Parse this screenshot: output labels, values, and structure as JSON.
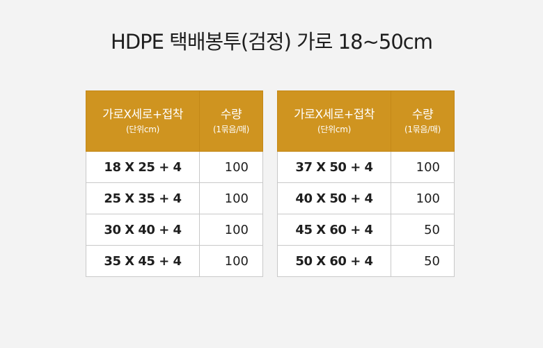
{
  "title": "HDPE 택배봉투(검정) 가로 18~50cm",
  "header": {
    "size_main": "가로X세로+접착",
    "size_sub": "(단위cm)",
    "qty_main": "수량",
    "qty_sub": "(1묶음/매)"
  },
  "left_table": {
    "rows": [
      {
        "size": "18 X 25 + 4",
        "qty": "100"
      },
      {
        "size": "25 X 35 + 4",
        "qty": "100"
      },
      {
        "size": "30 X 40 + 4",
        "qty": "100"
      },
      {
        "size": "35 X 45 + 4",
        "qty": "100"
      }
    ]
  },
  "right_table": {
    "rows": [
      {
        "size": "37 X 50 + 4",
        "qty": "100"
      },
      {
        "size": "40 X 50 + 4",
        "qty": "100"
      },
      {
        "size": "45 X 60 + 4",
        "qty": "50"
      },
      {
        "size": "50 X 60 + 4",
        "qty": "50"
      }
    ]
  },
  "colors": {
    "header_bg": "#cf9420",
    "header_text": "#ffffff",
    "page_bg": "#f3f3f3"
  }
}
